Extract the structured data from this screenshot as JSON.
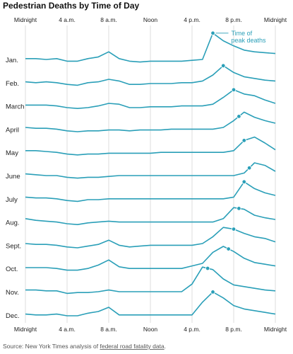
{
  "chart_data": {
    "type": "line",
    "title": "Pedestrian Deaths by Time of Day",
    "x_ticks": [
      {
        "label": "Midnight",
        "hour": 0
      },
      {
        "label": "4 a.m.",
        "hour": 4
      },
      {
        "label": "8 a.m.",
        "hour": 8
      },
      {
        "label": "Noon",
        "hour": 12
      },
      {
        "label": "4 p.m.",
        "hour": 16
      },
      {
        "label": "8 p.m.",
        "hour": 20
      },
      {
        "label": "Midnight",
        "hour": 24
      }
    ],
    "xlim": [
      0,
      24
    ],
    "grid": "vertical",
    "line_color": "#2a9fb8",
    "grid_color": "#dddddd",
    "annotation": {
      "lines": [
        "Time of",
        "peak deaths"
      ],
      "month": "Jan."
    },
    "series": [
      {
        "name": "Jan.",
        "peak_hour": 18,
        "values": [
          0.05,
          0.05,
          0.0,
          0.05,
          -0.1,
          -0.1,
          0.05,
          0.15,
          0.45,
          0.05,
          -0.1,
          -0.15,
          -0.1,
          -0.1,
          -0.1,
          -0.1,
          -0.05,
          0.0,
          1.55,
          1.1,
          0.8,
          0.55,
          0.45,
          0.4,
          0.35
        ]
      },
      {
        "name": "Feb.",
        "peak_hour": 19,
        "values": [
          0.05,
          0.0,
          0.05,
          0.0,
          -0.1,
          -0.15,
          0.0,
          0.05,
          0.2,
          0.1,
          -0.1,
          -0.1,
          -0.05,
          -0.05,
          -0.05,
          0.0,
          0.0,
          0.1,
          0.45,
          1.0,
          0.6,
          0.35,
          0.25,
          0.15,
          0.1
        ]
      },
      {
        "name": "March",
        "peak_hour": 20,
        "values": [
          0.05,
          0.05,
          0.05,
          0.0,
          -0.1,
          -0.15,
          -0.1,
          0.0,
          0.15,
          0.1,
          -0.1,
          -0.1,
          -0.05,
          -0.05,
          -0.05,
          0.0,
          0.0,
          0.0,
          0.1,
          0.5,
          0.95,
          0.7,
          0.6,
          0.35,
          0.15
        ]
      },
      {
        "name": "April",
        "peak_hour": 20.5,
        "values": [
          0.1,
          0.05,
          0.05,
          0.0,
          -0.1,
          -0.15,
          -0.1,
          -0.1,
          -0.05,
          -0.05,
          -0.1,
          -0.05,
          -0.05,
          -0.05,
          0.0,
          0.0,
          0.0,
          0.0,
          0.0,
          0.1,
          0.5,
          1.0,
          0.7,
          0.5,
          0.35
        ]
      },
      {
        "name": "May",
        "peak_hour": 21,
        "values": [
          0.1,
          0.1,
          0.05,
          0.0,
          -0.1,
          -0.15,
          -0.1,
          -0.1,
          -0.05,
          -0.05,
          -0.05,
          -0.05,
          -0.05,
          0.0,
          0.0,
          0.0,
          0.0,
          0.0,
          0.0,
          0.0,
          0.1,
          0.7,
          0.9,
          0.55,
          0.15
        ]
      },
      {
        "name": "June",
        "peak_hour": 21.5,
        "values": [
          0.1,
          0.05,
          0.0,
          0.0,
          -0.1,
          -0.15,
          -0.1,
          -0.1,
          -0.05,
          0.0,
          0.0,
          0.0,
          0.0,
          0.0,
          0.0,
          0.0,
          0.0,
          0.0,
          0.0,
          0.0,
          0.0,
          0.15,
          0.75,
          0.6,
          0.25
        ]
      },
      {
        "name": "July",
        "peak_hour": 21,
        "values": [
          0.1,
          0.05,
          0.05,
          0.0,
          -0.1,
          -0.15,
          -0.05,
          -0.05,
          0.0,
          0.0,
          0.0,
          0.0,
          0.0,
          0.0,
          0.0,
          0.0,
          0.0,
          0.0,
          0.0,
          0.0,
          0.1,
          1.0,
          0.6,
          0.35,
          0.2
        ]
      },
      {
        "name": "Aug.",
        "peak_hour": 20.5,
        "values": [
          0.2,
          0.1,
          0.05,
          0.0,
          -0.1,
          -0.15,
          -0.05,
          0.0,
          0.05,
          0.0,
          0.0,
          0.0,
          0.0,
          0.0,
          0.0,
          0.0,
          0.0,
          0.0,
          0.0,
          0.2,
          0.85,
          0.75,
          0.4,
          0.25,
          0.15
        ]
      },
      {
        "name": "Sept.",
        "peak_hour": 20,
        "values": [
          0.1,
          0.05,
          0.05,
          0.0,
          -0.1,
          -0.15,
          -0.05,
          0.05,
          0.3,
          0.0,
          -0.1,
          -0.05,
          0.0,
          0.0,
          0.0,
          0.0,
          0.0,
          0.1,
          0.5,
          1.05,
          0.95,
          0.7,
          0.5,
          0.4,
          0.2
        ]
      },
      {
        "name": "Oct.",
        "peak_hour": 19.5,
        "values": [
          0.05,
          0.05,
          0.05,
          0.0,
          -0.1,
          -0.1,
          0.0,
          0.2,
          0.5,
          0.1,
          0.0,
          0.0,
          0.0,
          0.0,
          0.0,
          0.0,
          0.15,
          0.3,
          0.95,
          1.3,
          1.0,
          0.6,
          0.35,
          0.25,
          0.15
        ]
      },
      {
        "name": "Nov.",
        "peak_hour": 17.5,
        "values": [
          0.1,
          0.1,
          0.05,
          0.05,
          -0.1,
          -0.05,
          -0.05,
          0.0,
          0.1,
          0.0,
          0.0,
          0.0,
          0.0,
          0.0,
          0.0,
          0.0,
          0.45,
          1.45,
          1.3,
          0.75,
          0.4,
          0.3,
          0.2,
          0.1,
          0.05
        ]
      },
      {
        "name": "Dec.",
        "peak_hour": 18,
        "values": [
          0.05,
          0.0,
          0.0,
          0.05,
          -0.05,
          -0.05,
          0.1,
          0.2,
          0.45,
          0.0,
          0.0,
          0.0,
          0.0,
          0.0,
          0.0,
          0.0,
          0.0,
          0.75,
          1.35,
          1.0,
          0.55,
          0.35,
          0.25,
          0.15,
          0.05
        ]
      }
    ]
  },
  "footer": {
    "source_prefix": "Source: New York Times analysis of ",
    "source_link": "federal road fatality data",
    "source_suffix": "."
  }
}
